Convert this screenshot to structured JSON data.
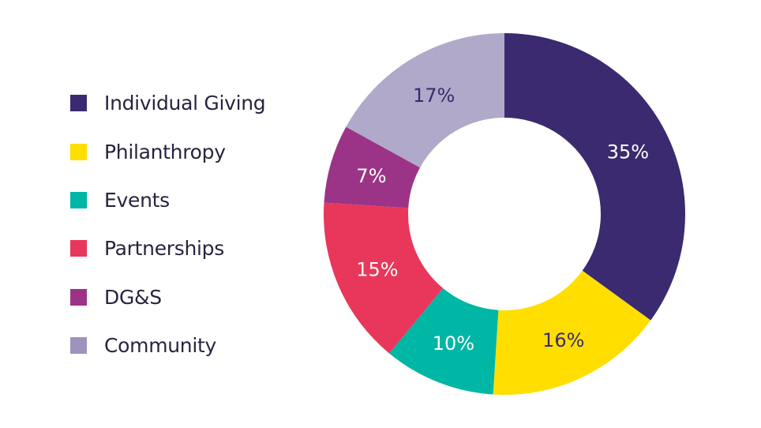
{
  "chart_data": {
    "type": "pie",
    "donut": true,
    "title": "",
    "legend_position": "left",
    "categories": [
      "Individual Giving",
      "Philanthropy",
      "Events",
      "Partnerships",
      "DG&S",
      "Community"
    ],
    "values": [
      35,
      16,
      10,
      15,
      7,
      17
    ],
    "labels": [
      "35%",
      "16%",
      "10%",
      "15%",
      "7%",
      "17%"
    ],
    "colors": [
      "#3b2a70",
      "#ffde00",
      "#00b6a5",
      "#e8375a",
      "#9b3487",
      "#b0a9c9"
    ],
    "legend_colors": [
      "#3b2a70",
      "#ffde00",
      "#00b6a5",
      "#e8375a",
      "#9b3487",
      "#9e93bd"
    ],
    "label_colors": [
      "#ffffff",
      "#3b2a70",
      "#ffffff",
      "#ffffff",
      "#ffffff",
      "#3b2a70"
    ]
  }
}
